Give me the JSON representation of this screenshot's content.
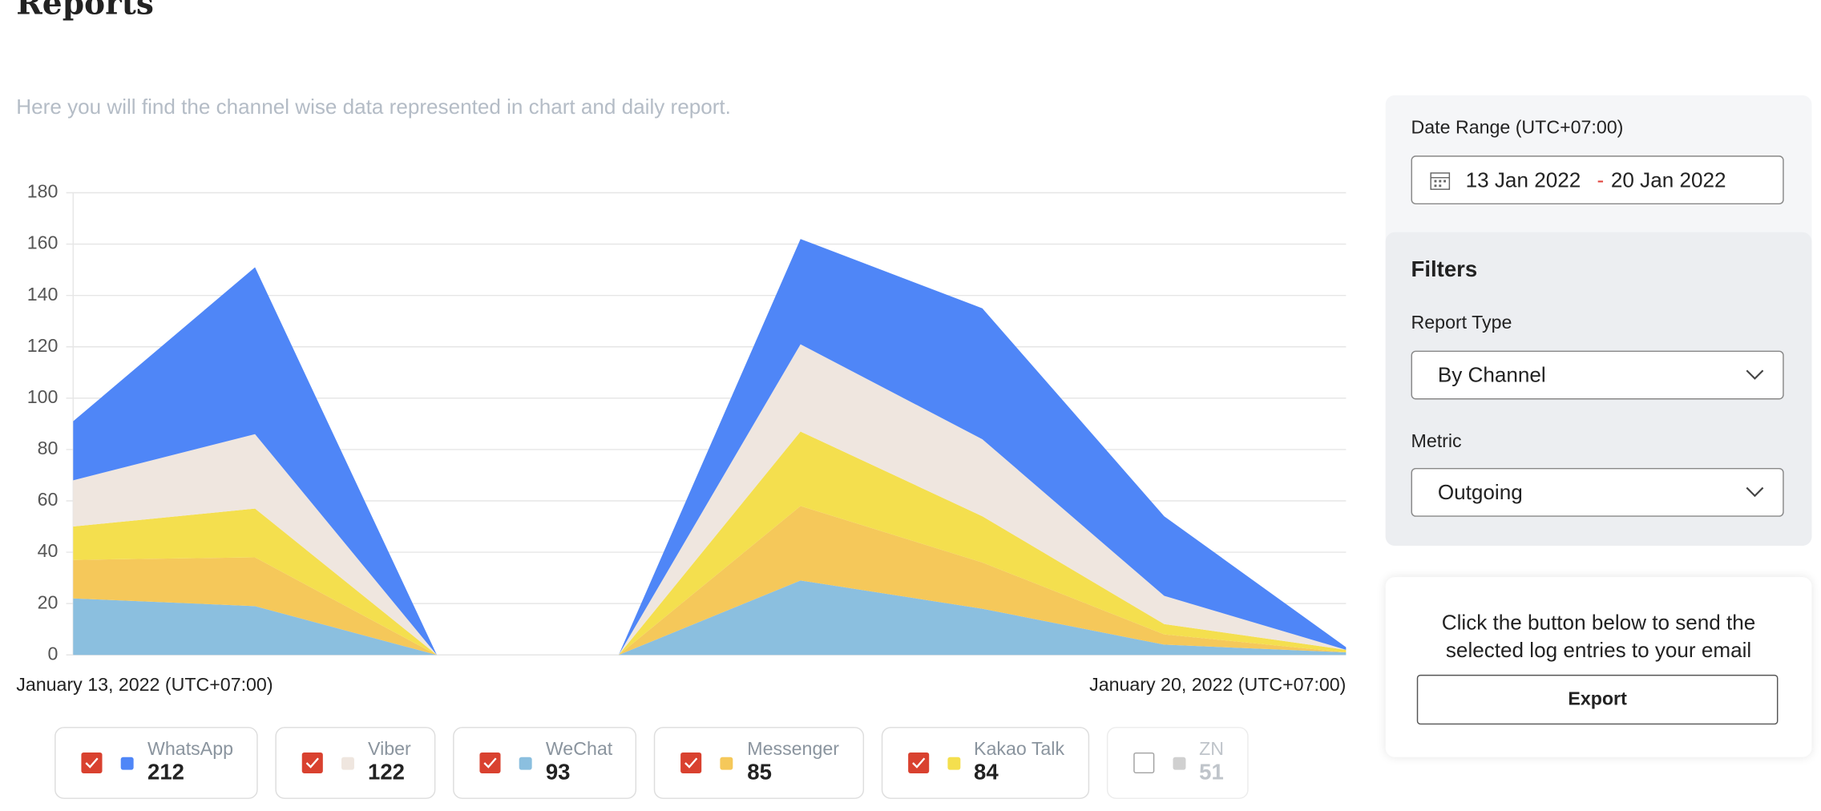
{
  "header": {
    "title": "Reports",
    "subtitle": "Here you will find the channel wise data represented in chart and daily report."
  },
  "chart_data": {
    "type": "area",
    "stacked": true,
    "categories": [
      "January 13, 2022 (UTC+07:00)",
      null,
      null,
      null,
      null,
      null,
      null,
      "January 20, 2022 (UTC+07:00)"
    ],
    "ylim": [
      0,
      180
    ],
    "yticks": [
      0,
      20,
      40,
      60,
      80,
      100,
      120,
      140,
      160,
      180
    ],
    "grid": true,
    "series": [
      {
        "name": "WhatsApp",
        "color": "#4f86f7",
        "total": 212,
        "checked": true,
        "values": [
          23,
          65,
          0,
          0,
          41,
          51,
          31,
          1
        ]
      },
      {
        "name": "Viber",
        "color": "#efe6df",
        "total": 122,
        "checked": true,
        "values": [
          18,
          29,
          0,
          0,
          34,
          30,
          11,
          0
        ]
      },
      {
        "name": "WeChat",
        "color": "#8bbfdf",
        "total": 93,
        "checked": true,
        "values": [
          22,
          19,
          0,
          0,
          29,
          18,
          4,
          1
        ]
      },
      {
        "name": "Messenger",
        "color": "#f5c85a",
        "total": 85,
        "checked": true,
        "values": [
          15,
          19,
          0,
          0,
          29,
          18,
          4,
          0
        ]
      },
      {
        "name": "Kakao Talk",
        "color": "#f4df4e",
        "total": 84,
        "checked": true,
        "values": [
          13,
          19,
          0,
          0,
          29,
          18,
          4,
          1
        ]
      },
      {
        "name": "ZN",
        "color": "#aaaaaa",
        "total": 51,
        "checked": false
      }
    ]
  },
  "sidebar": {
    "date_range": {
      "label": "Date Range (UTC+07:00)",
      "start": "13 Jan 2022",
      "separator": "-",
      "end": "20 Jan 2022"
    },
    "filters": {
      "title": "Filters",
      "report_type": {
        "label": "Report Type",
        "value": "By Channel"
      },
      "metric": {
        "label": "Metric",
        "value": "Outgoing"
      }
    },
    "export": {
      "text": "Click the button below to send the selected log entries to your email",
      "button": "Export"
    }
  }
}
